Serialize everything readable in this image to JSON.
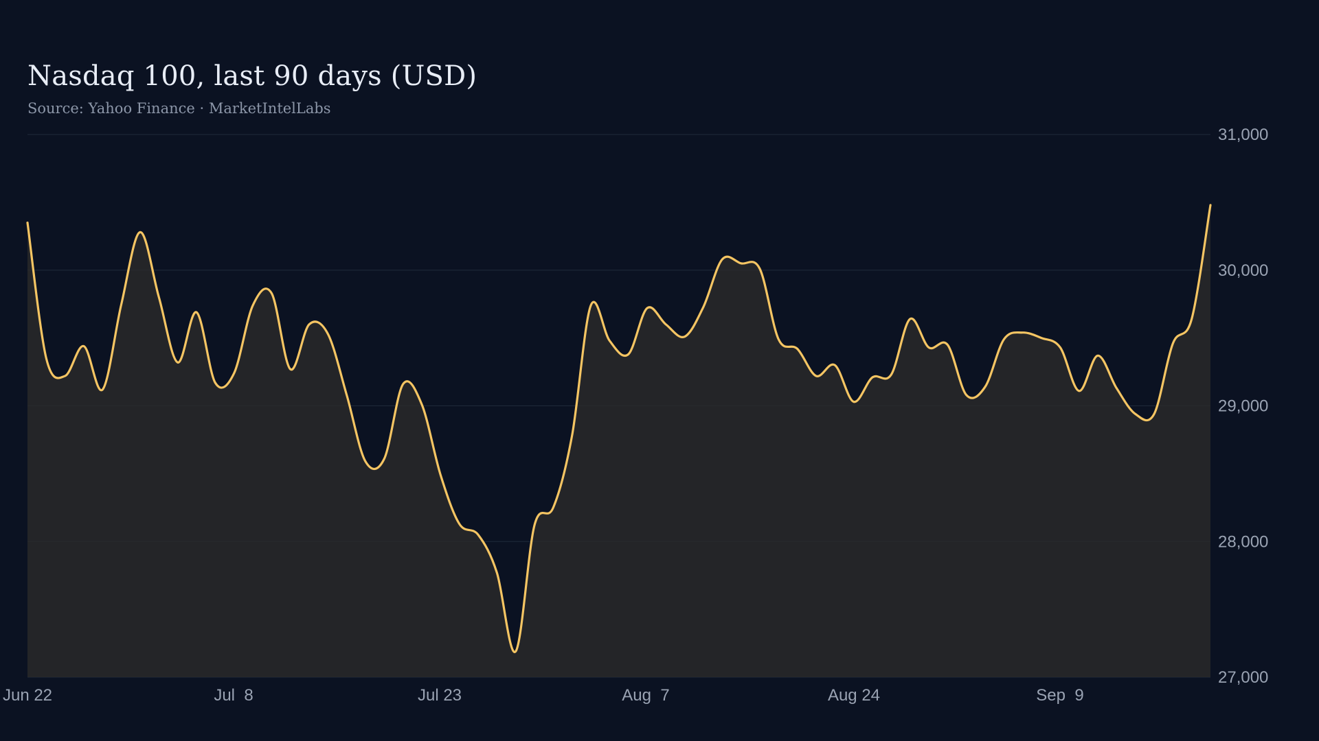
{
  "chart_data": {
    "type": "area",
    "title": "Nasdaq 100, last 90 days (USD)",
    "subtitle": "Source: Yahoo Finance · MarketIntelLabs",
    "xlabel": "",
    "ylabel": "",
    "ylim": [
      27000,
      31000
    ],
    "y_ticks": [
      {
        "value": 31000,
        "label": "31,000"
      },
      {
        "value": 30000,
        "label": "30,000"
      },
      {
        "value": 29000,
        "label": "29,000"
      },
      {
        "value": 28000,
        "label": "28,000"
      },
      {
        "value": 27000,
        "label": "27,000"
      }
    ],
    "x_ticks": [
      "Jun 22",
      "Jul  8",
      "Jul 23",
      "Aug  7",
      "Aug 24",
      "Sep  9"
    ],
    "y_axis_position": "right",
    "grid": "horizontal",
    "colors": {
      "background": "#0b1222",
      "line": "#f5c563",
      "area_fill": "#2a2a2a",
      "grid": "#1f2a3a",
      "text": "#9aa3b3"
    },
    "series": [
      {
        "values": [
          30350,
          29350,
          29220,
          29440,
          29120,
          29750,
          30280,
          29800,
          29320,
          29690,
          29170,
          29240,
          29740,
          29830,
          29270,
          29600,
          29530,
          29080,
          28590,
          28610,
          29160,
          29010,
          28490,
          28130,
          28050,
          27770,
          27190,
          28120,
          28250,
          28780,
          29740,
          29480,
          29380,
          29720,
          29600,
          29510,
          29730,
          30080,
          30050,
          30010,
          29490,
          29420,
          29220,
          29300,
          29030,
          29210,
          29230,
          29640,
          29430,
          29450,
          29080,
          29140,
          29490,
          29540,
          29500,
          29430,
          29110,
          29370,
          29130,
          28940,
          28940,
          29460,
          29640,
          30480
        ]
      }
    ]
  }
}
